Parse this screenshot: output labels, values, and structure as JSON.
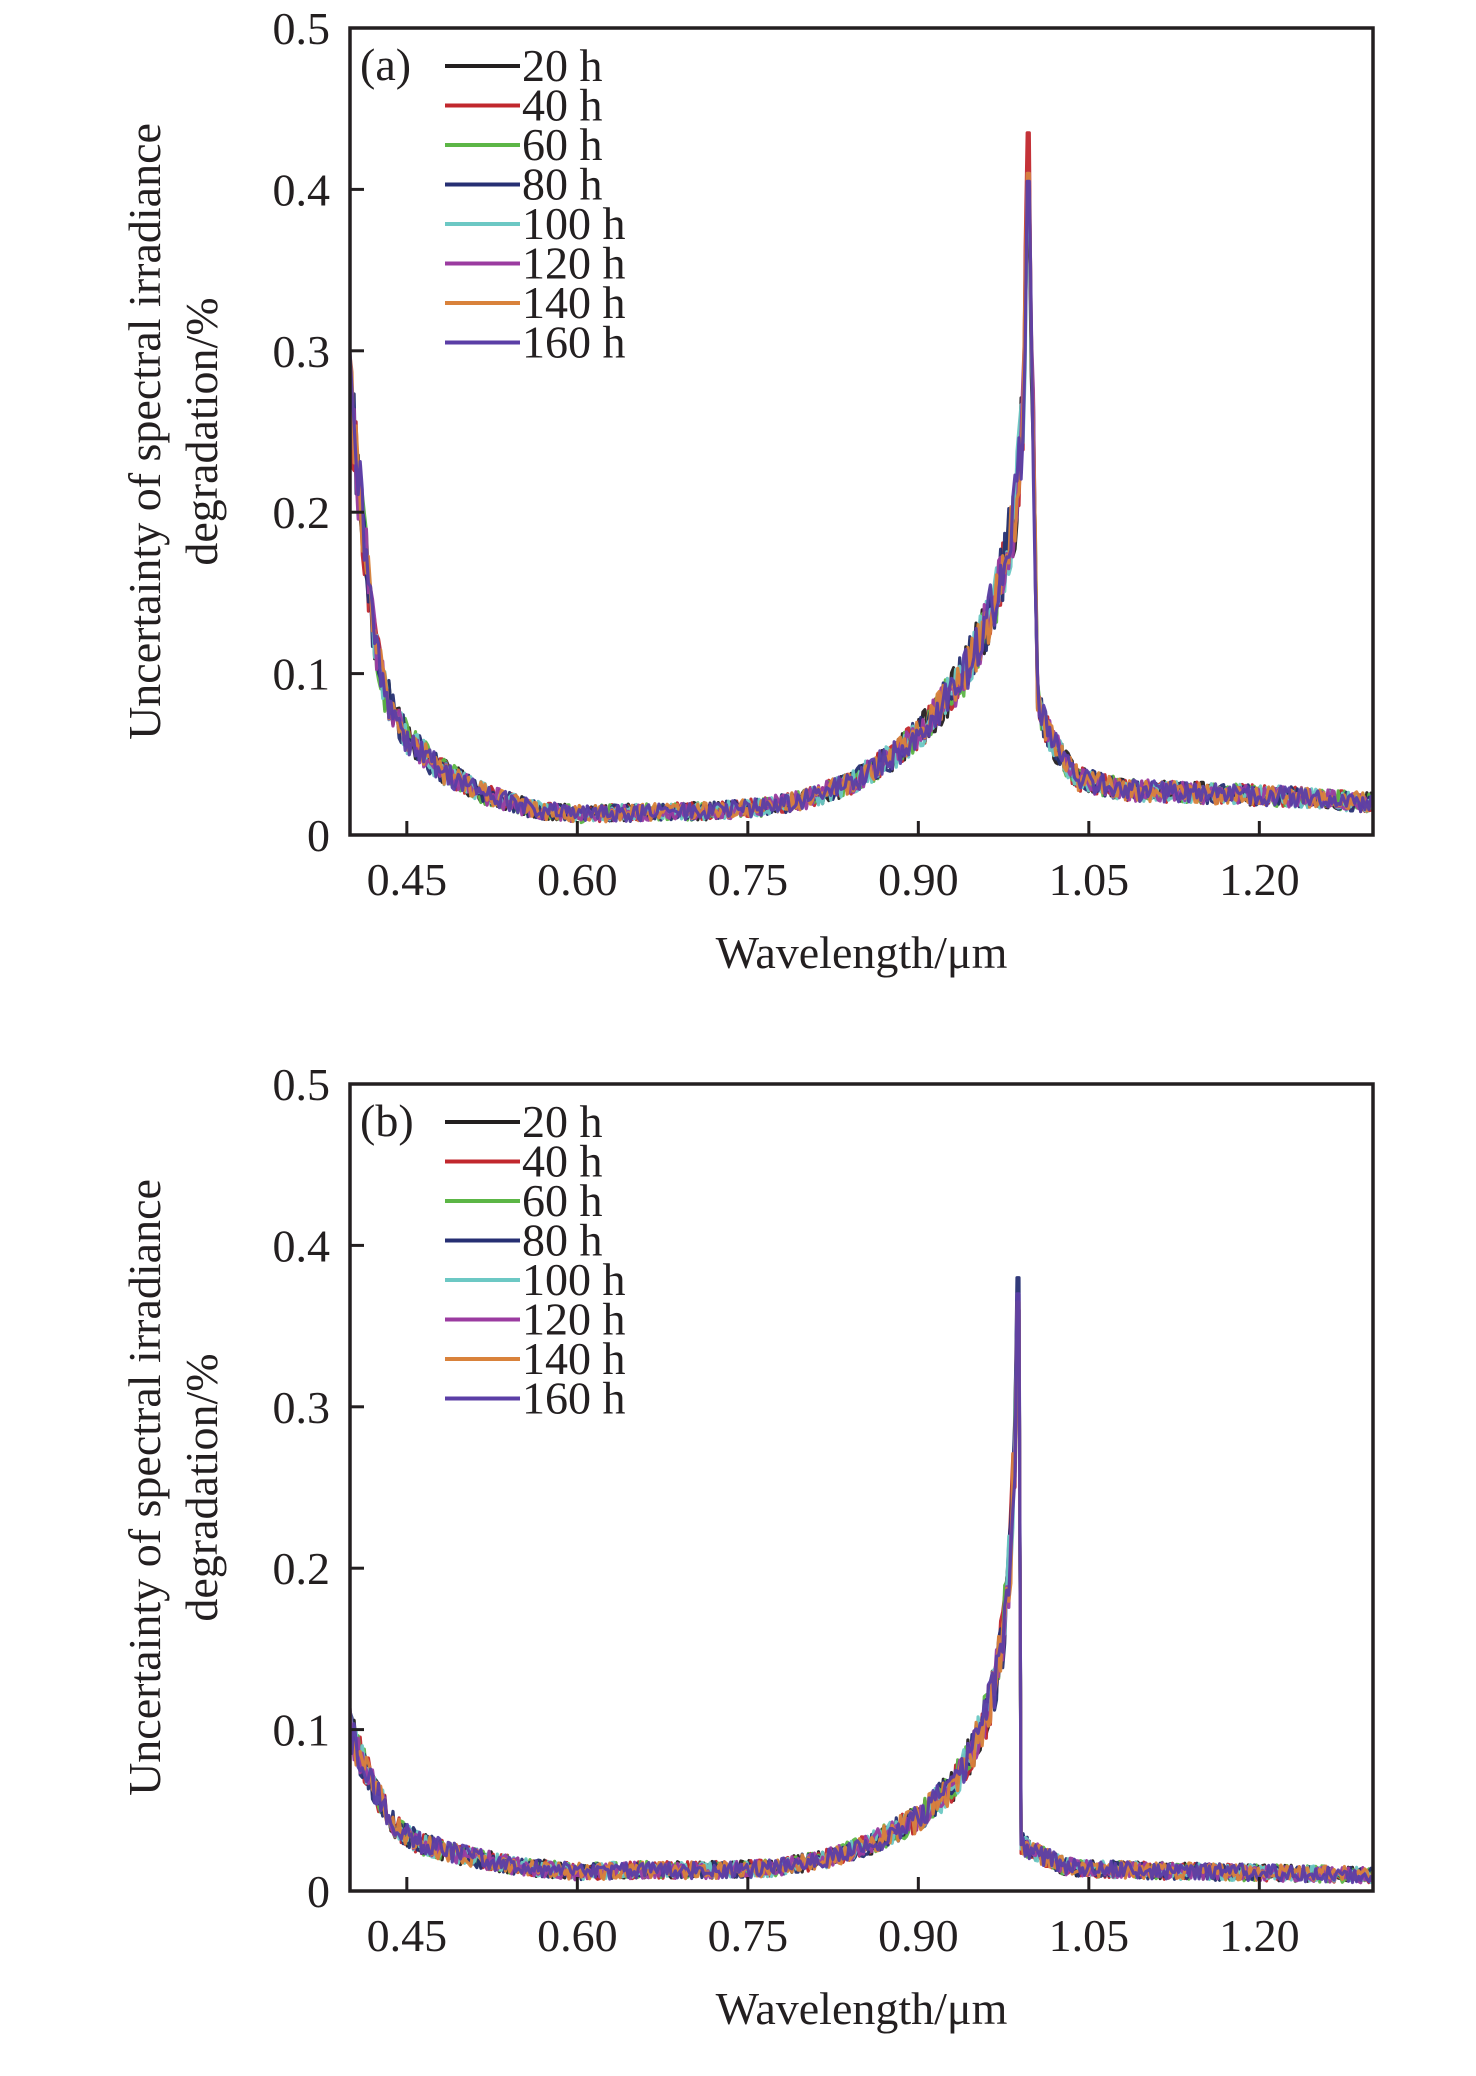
{
  "chart_data": [
    {
      "type": "line",
      "panel_label": "(a)",
      "xlabel": "Wavelength/μm",
      "ylabel_lines": [
        "Uncertainty of spectral irradiance",
        "degradation/%"
      ],
      "xlim": [
        0.4,
        1.3
      ],
      "ylim": [
        0,
        0.5
      ],
      "xticks": [
        0.45,
        0.6,
        0.75,
        0.9,
        1.05,
        1.2
      ],
      "xtick_labels": [
        "0.45",
        "0.60",
        "0.75",
        "0.90",
        "1.05",
        "1.20"
      ],
      "yticks": [
        0,
        0.1,
        0.2,
        0.3,
        0.4,
        0.5
      ],
      "ytick_labels": [
        "0",
        "0.1",
        "0.2",
        "0.3",
        "0.4",
        "0.5"
      ],
      "grid": false,
      "legend_position": "top-left",
      "profile_x": [
        0.4,
        0.41,
        0.42,
        0.43,
        0.45,
        0.48,
        0.52,
        0.56,
        0.6,
        0.66,
        0.72,
        0.76,
        0.8,
        0.84,
        0.88,
        0.91,
        0.94,
        0.96,
        0.975,
        0.985,
        0.992,
        0.997,
        1.0,
        1.005,
        1.02,
        1.04,
        1.08,
        1.15,
        1.22,
        1.3
      ],
      "profile_y": [
        0.27,
        0.2,
        0.13,
        0.09,
        0.06,
        0.04,
        0.025,
        0.016,
        0.013,
        0.014,
        0.015,
        0.017,
        0.022,
        0.032,
        0.05,
        0.07,
        0.1,
        0.13,
        0.165,
        0.2,
        0.26,
        0.4,
        0.3,
        0.08,
        0.055,
        0.035,
        0.028,
        0.026,
        0.024,
        0.02
      ],
      "series": [
        {
          "name": "20 h",
          "color": "#231f20",
          "peak": 0.38
        },
        {
          "name": "40 h",
          "color": "#c1272d",
          "peak": 0.435
        },
        {
          "name": "60 h",
          "color": "#5cb646",
          "peak": 0.4
        },
        {
          "name": "80 h",
          "color": "#262f73",
          "peak": 0.39
        },
        {
          "name": "100 h",
          "color": "#6cc8c4",
          "peak": 0.4
        },
        {
          "name": "120 h",
          "color": "#9b3ba0",
          "peak": 0.41
        },
        {
          "name": "140 h",
          "color": "#d9823b",
          "peak": 0.41
        },
        {
          "name": "160 h",
          "color": "#5b3ea6",
          "peak": 0.405
        }
      ]
    },
    {
      "type": "line",
      "panel_label": "(b)",
      "xlabel": "Wavelength/μm",
      "ylabel_lines": [
        "Uncertainty of spectral irradiance",
        "degradation/%"
      ],
      "xlim": [
        0.4,
        1.3
      ],
      "ylim": [
        0,
        0.5
      ],
      "xticks": [
        0.45,
        0.6,
        0.75,
        0.9,
        1.05,
        1.2
      ],
      "xtick_labels": [
        "0.45",
        "0.60",
        "0.75",
        "0.90",
        "1.05",
        "1.20"
      ],
      "yticks": [
        0,
        0.1,
        0.2,
        0.3,
        0.4,
        0.5
      ],
      "ytick_labels": [
        "0",
        "0.1",
        "0.2",
        "0.3",
        "0.4",
        "0.5"
      ],
      "grid": false,
      "legend_position": "top-left",
      "profile_x": [
        0.4,
        0.42,
        0.44,
        0.46,
        0.5,
        0.55,
        0.6,
        0.66,
        0.72,
        0.77,
        0.82,
        0.86,
        0.9,
        0.93,
        0.95,
        0.965,
        0.975,
        0.982,
        0.986,
        0.988,
        0.99,
        1.0,
        1.03,
        1.08,
        1.15,
        1.22,
        1.3
      ],
      "profile_y": [
        0.1,
        0.065,
        0.04,
        0.03,
        0.022,
        0.015,
        0.012,
        0.013,
        0.013,
        0.014,
        0.02,
        0.03,
        0.045,
        0.065,
        0.09,
        0.12,
        0.16,
        0.22,
        0.3,
        0.37,
        0.03,
        0.025,
        0.015,
        0.013,
        0.012,
        0.011,
        0.01
      ],
      "series": [
        {
          "name": "20 h",
          "color": "#231f20",
          "peak": 0.36
        },
        {
          "name": "40 h",
          "color": "#c1272d",
          "peak": 0.36
        },
        {
          "name": "60 h",
          "color": "#5cb646",
          "peak": 0.35
        },
        {
          "name": "80 h",
          "color": "#262f73",
          "peak": 0.38
        },
        {
          "name": "100 h",
          "color": "#6cc8c4",
          "peak": 0.36
        },
        {
          "name": "120 h",
          "color": "#9b3ba0",
          "peak": 0.36
        },
        {
          "name": "140 h",
          "color": "#d9823b",
          "peak": 0.365
        },
        {
          "name": "160 h",
          "color": "#5b3ea6",
          "peak": 0.37
        }
      ]
    }
  ]
}
